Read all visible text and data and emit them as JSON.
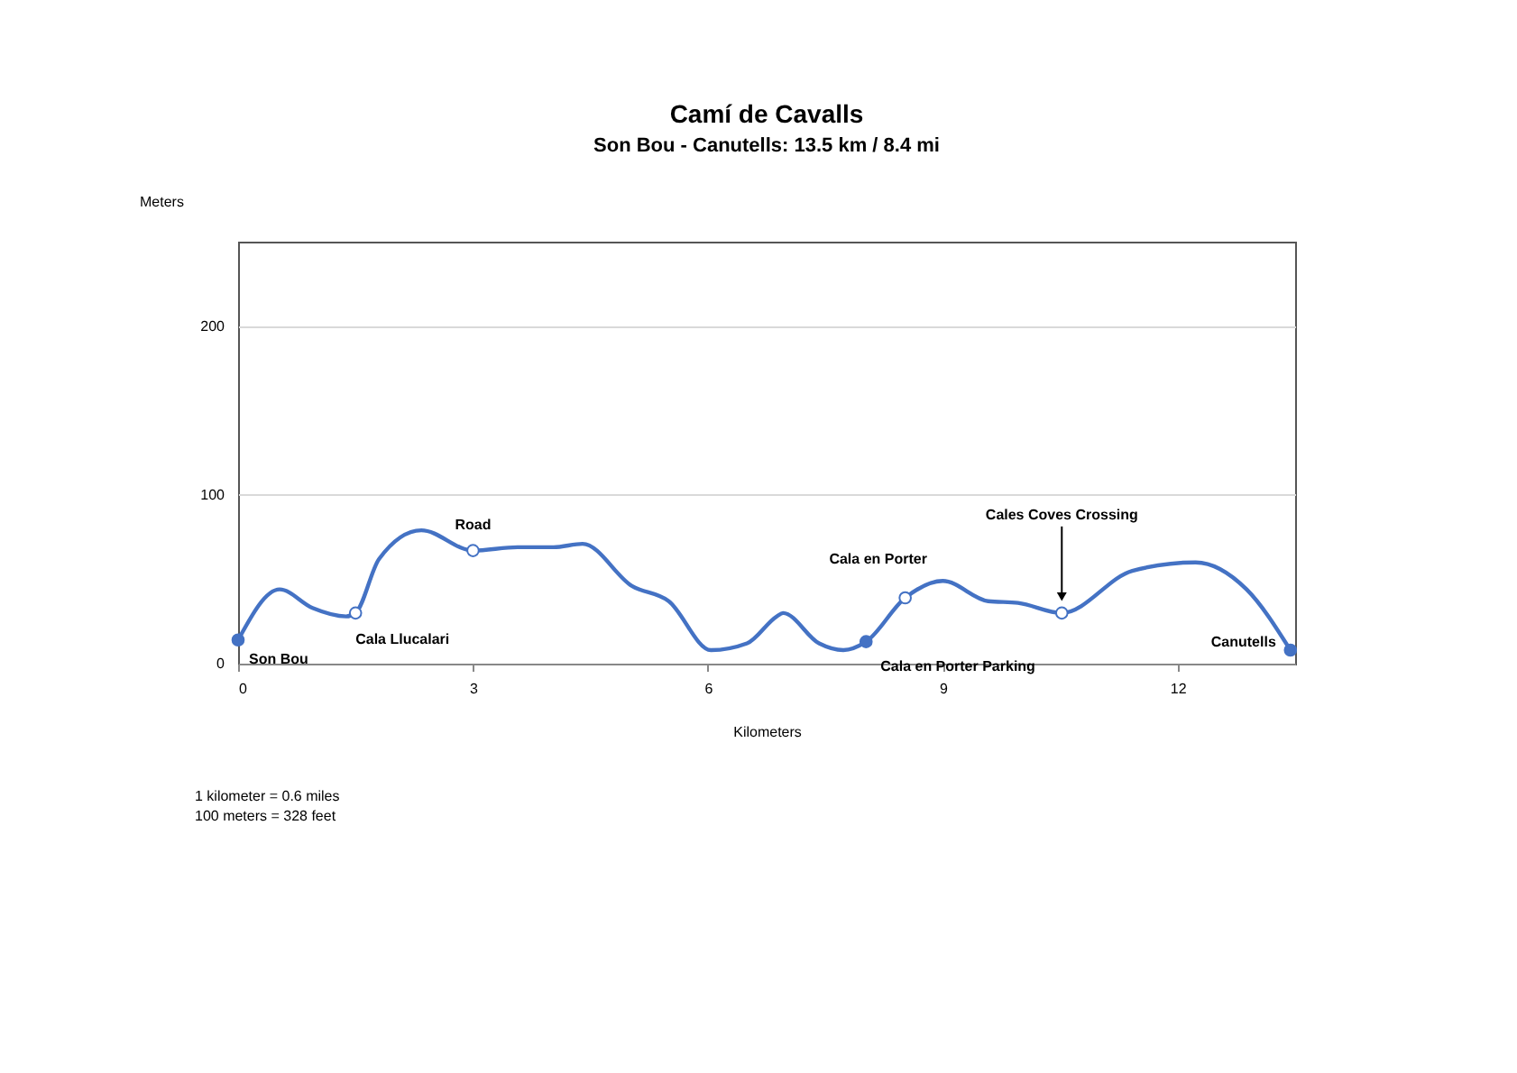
{
  "chart_data": {
    "type": "line",
    "title": "Camí de Cavalls",
    "subtitle": "Son Bou - Canutells: 13.5 km / 8.4 mi",
    "xlabel": "Kilometers",
    "ylabel": "Meters",
    "xlim": [
      0,
      13.5
    ],
    "xticks": [
      0,
      3,
      6,
      9,
      12
    ],
    "ylim": [
      0,
      250
    ],
    "yticks": [
      0,
      100,
      200
    ],
    "grid": "y",
    "series": [
      {
        "color": "#4472c4",
        "x": [
          0,
          0.53,
          0.95,
          1.38,
          1.5,
          1.8,
          2.34,
          3.0,
          3.57,
          4.03,
          4.4,
          5.03,
          5.5,
          6.04,
          6.5,
          6.88,
          6.96,
          7.42,
          7.73,
          8.02,
          8.52,
          9.0,
          9.58,
          9.96,
          10.52,
          11.42,
          12.23,
          12.88,
          13.44
        ],
        "values": [
          14,
          44,
          33,
          28,
          30,
          62,
          79,
          67,
          69,
          69,
          71,
          46,
          37,
          8,
          12,
          28,
          30,
          12,
          8,
          13,
          39,
          49,
          37,
          36,
          30,
          55,
          60,
          44,
          8
        ]
      },
      {
        "type": "scatter",
        "color": "#4472c4",
        "x": [
          0,
          8.02,
          13.44
        ],
        "values": [
          14,
          13,
          8
        ]
      },
      {
        "type": "scatter",
        "color": "#ffffff",
        "x": [
          1.5,
          3.0,
          8.52,
          10.52
        ],
        "values": [
          30,
          67,
          39,
          30
        ]
      }
    ],
    "annotations": [
      {
        "text": "Son Bou",
        "x": 0,
        "y": 14
      },
      {
        "text": "Cala Llucalari",
        "x": 1.5,
        "y": 30
      },
      {
        "text": "Road",
        "x": 3.0,
        "y": 67
      },
      {
        "text": "Cala en Porter",
        "x": 8.52,
        "y": 39
      },
      {
        "text": "Cala en Porter Parking",
        "x": 8.02,
        "y": 13
      },
      "Cales Coves Crossing",
      {
        "text": "Canutells",
        "x": 13.44,
        "y": 8
      },
      "1 kilometer = 0.6 miles",
      "100 meters = 328 feet"
    ]
  }
}
